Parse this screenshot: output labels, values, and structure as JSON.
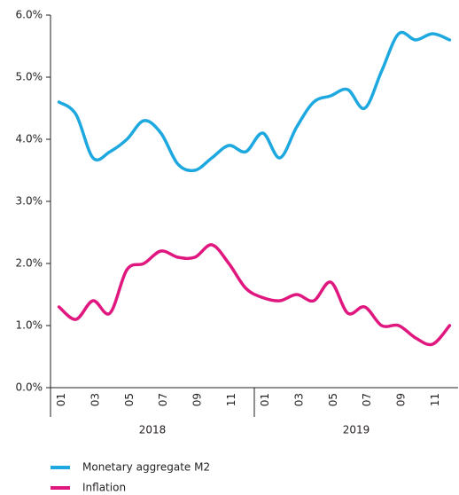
{
  "chart_data": {
    "type": "line",
    "categories": [
      "01",
      null,
      "03",
      null,
      "05",
      null,
      "07",
      null,
      "09",
      null,
      "11",
      null,
      "01",
      null,
      "03",
      null,
      "05",
      null,
      "07",
      null,
      "09",
      null,
      "11",
      null
    ],
    "x_groups": [
      "2018",
      "2019"
    ],
    "series": [
      {
        "name": "Monetary aggregate M2",
        "color": "#1ea8e0",
        "values": [
          4.6,
          4.4,
          3.7,
          3.8,
          4.0,
          4.3,
          4.1,
          3.6,
          3.5,
          3.7,
          3.9,
          3.8,
          4.1,
          3.7,
          4.2,
          4.6,
          4.7,
          4.8,
          4.5,
          5.1,
          5.7,
          5.6,
          5.7,
          5.6
        ]
      },
      {
        "name": "Inflation",
        "color": "#e0177f",
        "values": [
          1.3,
          1.1,
          1.4,
          1.2,
          1.9,
          2.0,
          2.2,
          2.1,
          2.1,
          2.3,
          2.0,
          1.6,
          1.45,
          1.4,
          1.5,
          1.4,
          1.7,
          1.2,
          1.3,
          1.0,
          1.0,
          0.8,
          0.7,
          1.0
        ]
      }
    ],
    "ylim": [
      0,
      6
    ],
    "yticks": [
      {
        "value": 0,
        "label": "0.0%"
      },
      {
        "value": 1,
        "label": "1.0%"
      },
      {
        "value": 2,
        "label": "2.0%"
      },
      {
        "value": 3,
        "label": "3.0%"
      },
      {
        "value": 4,
        "label": "4.0%"
      },
      {
        "value": 5,
        "label": "5.0%"
      },
      {
        "value": 6,
        "label": "6.0%"
      }
    ],
    "legend": "bottom-left"
  }
}
